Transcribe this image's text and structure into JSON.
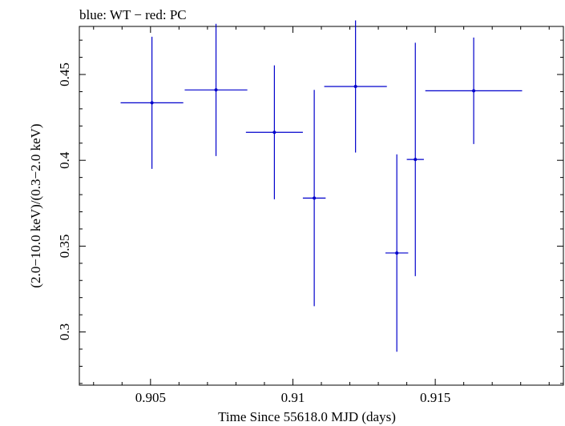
{
  "chart_data": {
    "type": "scatter",
    "title": "blue: WT − red: PC",
    "xlabel": "Time Since 55618.0 MJD (days)",
    "ylabel": "(2.0−10.0 keV)/(0.3−2.0 keV)",
    "xlim": [
      0.9025,
      0.9195
    ],
    "ylim": [
      0.269,
      0.478
    ],
    "x_ticks": [
      0.905,
      0.91,
      0.915
    ],
    "x_tick_labels": [
      "0.905",
      "0.91",
      "0.915"
    ],
    "y_ticks": [
      0.3,
      0.35,
      0.4,
      0.45
    ],
    "y_tick_labels": [
      "0.3",
      "0.35",
      "0.4",
      "0.45"
    ],
    "x_minor_step": 0.001,
    "y_minor_step": 0.01,
    "grid": false,
    "series": [
      {
        "color": "#0000cc",
        "points": [
          {
            "x": 0.90505,
            "xerr": 0.0011,
            "y": 0.4335,
            "yerr": 0.0385
          },
          {
            "x": 0.9073,
            "xerr": 0.0011,
            "y": 0.441,
            "yerr": 0.0385
          },
          {
            "x": 0.90935,
            "xerr": 0.001,
            "y": 0.4163,
            "yerr": 0.039
          },
          {
            "x": 0.91075,
            "xerr": 0.0004,
            "y": 0.378,
            "yerr": 0.063
          },
          {
            "x": 0.9122,
            "xerr": 0.0011,
            "y": 0.443,
            "yerr": 0.0385
          },
          {
            "x": 0.91365,
            "xerr": 0.0004,
            "y": 0.346,
            "yerr": 0.0575
          },
          {
            "x": 0.9143,
            "xerr": 0.0003,
            "y": 0.4005,
            "yerr": 0.068
          },
          {
            "x": 0.91635,
            "xerr": 0.0017,
            "y": 0.4405,
            "yerr": 0.031
          }
        ]
      }
    ]
  }
}
